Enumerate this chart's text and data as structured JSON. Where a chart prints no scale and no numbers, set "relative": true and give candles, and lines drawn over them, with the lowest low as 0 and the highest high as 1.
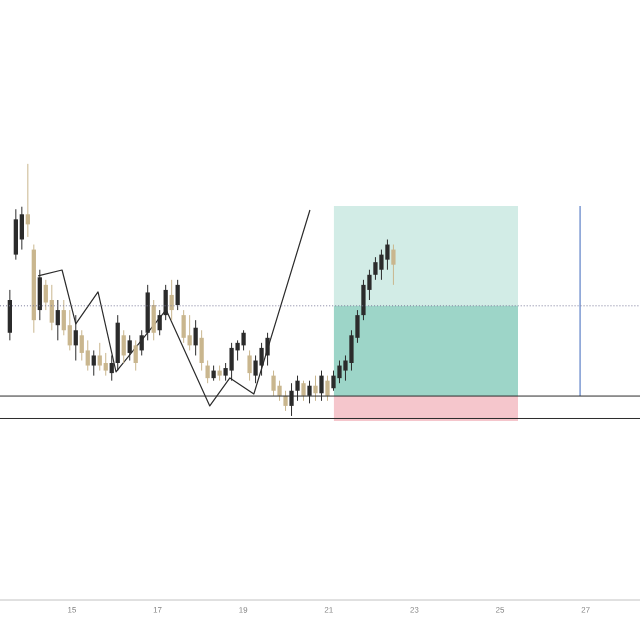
{
  "chart_data": {
    "type": "candlestick",
    "relative": true,
    "colors": [
      "#2b2b2b",
      "#2b2b2b",
      "#2b2b2b",
      "#c9b68e",
      "#c9b68e",
      "#2b2b2b",
      "#c9b68e",
      "#c9b68e",
      "#2b2b2b",
      "#c9b68e",
      "#c9b68e",
      "#2b2b2b",
      "#c9b68e",
      "#c9b68e",
      "#2b2b2b",
      "#c9b68e",
      "#c9b68e",
      "#2b2b2b",
      "#2b2b2b",
      "#c9b68e",
      "#2b2b2b",
      "#c9b68e",
      "#2b2b2b",
      "#2b2b2b",
      "#c9b68e",
      "#2b2b2b",
      "#2b2b2b",
      "#c9b68e",
      "#2b2b2b",
      "#c9b68e",
      "#c9b68e",
      "#2b2b2b",
      "#c9b68e",
      "#c9b68e",
      "#2b2b2b",
      "#c9b68e",
      "#2b2b2b",
      "#2b2b2b",
      "#2b2b2b",
      "#2b2b2b",
      "#c9b68e",
      "#2b2b2b",
      "#2b2b2b",
      "#2b2b2b",
      "#c9b68e",
      "#c9b68e",
      "#c9b68e",
      "#2b2b2b",
      "#2b2b2b",
      "#c9b68e",
      "#2b2b2b",
      "#c9b68e",
      "#2b2b2b",
      "#c9b68e",
      "#2b2b2b",
      "#2b2b2b",
      "#2b2b2b",
      "#2b2b2b",
      "#2b2b2b",
      "#2b2b2b",
      "#2b2b2b",
      "#2b2b2b",
      "#2b2b2b",
      "#2b2b2b",
      "#c9b68e"
    ],
    "x": [
      13.55,
      13.69,
      13.83,
      13.97,
      14.11,
      14.25,
      14.39,
      14.53,
      14.67,
      14.81,
      14.95,
      15.09,
      15.23,
      15.37,
      15.51,
      15.65,
      15.79,
      15.93,
      16.07,
      16.21,
      16.35,
      16.49,
      16.63,
      16.77,
      16.91,
      17.05,
      17.19,
      17.33,
      17.47,
      17.61,
      17.75,
      17.89,
      18.03,
      18.17,
      18.31,
      18.45,
      18.59,
      18.73,
      18.87,
      19.01,
      19.15,
      19.29,
      19.43,
      19.57,
      19.71,
      19.85,
      19.99,
      20.13,
      20.27,
      20.41,
      20.55,
      20.69,
      20.83,
      20.97,
      21.11,
      21.25,
      21.39,
      21.53,
      21.67,
      21.81,
      21.95,
      22.09,
      22.23,
      22.37,
      22.51
    ],
    "ohlc": [
      [
        0.33,
        0.5,
        0.3,
        0.46
      ],
      [
        0.64,
        0.82,
        0.62,
        0.78
      ],
      [
        0.7,
        0.83,
        0.66,
        0.8
      ],
      [
        0.8,
        1.0,
        0.71,
        0.76
      ],
      [
        0.66,
        0.68,
        0.33,
        0.38
      ],
      [
        0.42,
        0.58,
        0.38,
        0.55
      ],
      [
        0.52,
        0.54,
        0.42,
        0.45
      ],
      [
        0.46,
        0.52,
        0.34,
        0.37
      ],
      [
        0.36,
        0.46,
        0.3,
        0.42
      ],
      [
        0.42,
        0.46,
        0.32,
        0.34
      ],
      [
        0.36,
        0.42,
        0.26,
        0.28
      ],
      [
        0.28,
        0.4,
        0.22,
        0.34
      ],
      [
        0.32,
        0.34,
        0.22,
        0.25
      ],
      [
        0.26,
        0.3,
        0.18,
        0.2
      ],
      [
        0.2,
        0.26,
        0.16,
        0.24
      ],
      [
        0.24,
        0.29,
        0.18,
        0.2
      ],
      [
        0.21,
        0.25,
        0.16,
        0.18
      ],
      [
        0.17,
        0.24,
        0.14,
        0.21
      ],
      [
        0.21,
        0.4,
        0.18,
        0.37
      ],
      [
        0.32,
        0.34,
        0.21,
        0.24
      ],
      [
        0.25,
        0.32,
        0.22,
        0.3
      ],
      [
        0.28,
        0.3,
        0.18,
        0.21
      ],
      [
        0.26,
        0.34,
        0.24,
        0.32
      ],
      [
        0.33,
        0.52,
        0.3,
        0.49
      ],
      [
        0.44,
        0.46,
        0.3,
        0.33
      ],
      [
        0.34,
        0.42,
        0.32,
        0.4
      ],
      [
        0.4,
        0.52,
        0.38,
        0.5
      ],
      [
        0.48,
        0.54,
        0.38,
        0.42
      ],
      [
        0.44,
        0.54,
        0.42,
        0.52
      ],
      [
        0.4,
        0.42,
        0.29,
        0.31
      ],
      [
        0.32,
        0.4,
        0.26,
        0.28
      ],
      [
        0.28,
        0.38,
        0.24,
        0.35
      ],
      [
        0.31,
        0.34,
        0.18,
        0.21
      ],
      [
        0.2,
        0.22,
        0.13,
        0.15
      ],
      [
        0.15,
        0.2,
        0.14,
        0.18
      ],
      [
        0.18,
        0.2,
        0.14,
        0.16
      ],
      [
        0.16,
        0.21,
        0.14,
        0.19
      ],
      [
        0.18,
        0.29,
        0.14,
        0.27
      ],
      [
        0.26,
        0.3,
        0.22,
        0.29
      ],
      [
        0.28,
        0.34,
        0.26,
        0.33
      ],
      [
        0.24,
        0.26,
        0.14,
        0.17
      ],
      [
        0.16,
        0.24,
        0.13,
        0.22
      ],
      [
        0.2,
        0.29,
        0.16,
        0.27
      ],
      [
        0.24,
        0.33,
        0.2,
        0.31
      ],
      [
        0.16,
        0.18,
        0.08,
        0.1
      ],
      [
        0.12,
        0.14,
        0.06,
        0.08
      ],
      [
        0.08,
        0.1,
        0.02,
        0.04
      ],
      [
        0.04,
        0.13,
        0.0,
        0.1
      ],
      [
        0.1,
        0.16,
        0.06,
        0.14
      ],
      [
        0.13,
        0.14,
        0.06,
        0.08
      ],
      [
        0.08,
        0.14,
        0.05,
        0.12
      ],
      [
        0.12,
        0.16,
        0.06,
        0.09
      ],
      [
        0.09,
        0.18,
        0.06,
        0.16
      ],
      [
        0.14,
        0.16,
        0.06,
        0.08
      ],
      [
        0.11,
        0.18,
        0.1,
        0.16
      ],
      [
        0.15,
        0.22,
        0.13,
        0.2
      ],
      [
        0.18,
        0.24,
        0.14,
        0.22
      ],
      [
        0.21,
        0.34,
        0.18,
        0.32
      ],
      [
        0.31,
        0.42,
        0.29,
        0.4
      ],
      [
        0.4,
        0.54,
        0.38,
        0.52
      ],
      [
        0.5,
        0.58,
        0.46,
        0.56
      ],
      [
        0.56,
        0.63,
        0.54,
        0.61
      ],
      [
        0.58,
        0.66,
        0.54,
        0.64
      ],
      [
        0.62,
        0.7,
        0.58,
        0.68
      ],
      [
        0.66,
        0.68,
        0.52,
        0.6
      ]
    ],
    "series": [
      {
        "type": "area",
        "color": "#d2ece6",
        "x": [
          21.12,
          21.12,
          25.42,
          25.42
        ],
        "values": [
          0.437,
          0.833,
          0.833,
          0.437
        ]
      },
      {
        "type": "area",
        "color": "#9dd5c8",
        "x": [
          21.12,
          21.12,
          25.42,
          25.42
        ],
        "values": [
          0.079,
          0.437,
          0.437,
          0.079
        ]
      },
      {
        "type": "area",
        "color": "#f5c6cc",
        "x": [
          21.12,
          21.12,
          25.42,
          25.42
        ],
        "values": [
          -0.02,
          0.079,
          0.079,
          -0.02
        ]
      },
      {
        "type": "line",
        "color": "#2b2b2b",
        "x": [
          14.21,
          14.77,
          15.09,
          15.61,
          16.03,
          17.2,
          18.22,
          18.69,
          19.25,
          20.56
        ],
        "values": [
          0.556,
          0.579,
          0.365,
          0.492,
          0.175,
          0.421,
          0.04,
          0.151,
          0.087,
          0.817
        ]
      },
      {
        "type": "line",
        "color": "#5b7fc7",
        "x": [
          26.87,
          26.87
        ],
        "values": [
          0.079,
          0.833
        ]
      }
    ],
    "ref_lines": [
      {
        "axis": "y",
        "value": 0.437,
        "color": "#7a7a9a",
        "line_style": "dotted"
      },
      {
        "axis": "y",
        "value": 0.079,
        "color": "#2b2b2b",
        "line_style": "solid"
      },
      {
        "axis": "y",
        "value": -0.01,
        "color": "#2b2b2b",
        "line_style": "solid"
      }
    ],
    "xlim": [
      13.32,
      28.27
    ],
    "xticks": [
      15,
      17,
      19,
      21,
      23,
      25,
      27
    ]
  }
}
